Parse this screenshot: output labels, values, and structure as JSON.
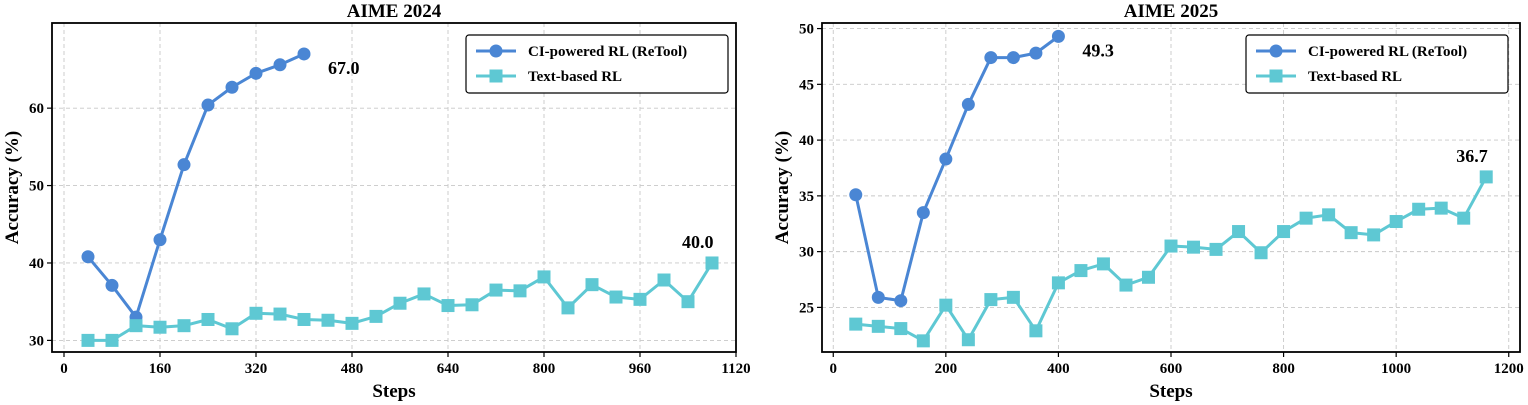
{
  "chart_data": [
    {
      "type": "line",
      "title": "AIME 2024",
      "xlabel": "Steps",
      "ylabel": "Accuracy (%)",
      "xlim": [
        -20,
        1120
      ],
      "ylim": [
        28.5,
        71
      ],
      "xticks": [
        0,
        160,
        320,
        480,
        640,
        800,
        960,
        1120
      ],
      "yticks": [
        30,
        40,
        50,
        60
      ],
      "grid": true,
      "legend_position": "top-right",
      "series": [
        {
          "name": "CI-powered RL (ReTool)",
          "marker": "circle",
          "color": "#4a86d4",
          "x": [
            40,
            80,
            120,
            160,
            200,
            240,
            280,
            320,
            360,
            400
          ],
          "y": [
            40.8,
            37.1,
            33.0,
            43.0,
            52.7,
            60.4,
            62.7,
            64.5,
            65.6,
            67.0
          ],
          "end_label": "67.0"
        },
        {
          "name": "Text-based RL",
          "marker": "square",
          "color": "#5ec8d3",
          "x": [
            40,
            80,
            120,
            160,
            200,
            240,
            280,
            320,
            360,
            400,
            440,
            480,
            520,
            560,
            600,
            640,
            680,
            720,
            760,
            800,
            840,
            880,
            920,
            960,
            1000,
            1040,
            1080
          ],
          "y": [
            30.0,
            30.0,
            31.9,
            31.7,
            31.9,
            32.7,
            31.5,
            33.5,
            33.4,
            32.7,
            32.6,
            32.2,
            33.1,
            34.8,
            36.0,
            34.5,
            34.6,
            36.5,
            36.4,
            38.2,
            34.2,
            37.2,
            35.6,
            35.3,
            37.8,
            35.0,
            40.0
          ],
          "end_label": "40.0"
        }
      ]
    },
    {
      "type": "line",
      "title": "AIME 2025",
      "xlabel": "Steps",
      "ylabel": "Accuracy (%)",
      "xlim": [
        -20,
        1220
      ],
      "ylim": [
        21,
        50.5
      ],
      "xticks": [
        0,
        200,
        400,
        600,
        800,
        1000,
        1200
      ],
      "yticks": [
        25,
        30,
        35,
        40,
        45,
        50
      ],
      "grid": true,
      "legend_position": "top-right",
      "series": [
        {
          "name": "CI-powered RL (ReTool)",
          "marker": "circle",
          "color": "#4a86d4",
          "x": [
            40,
            80,
            120,
            160,
            200,
            240,
            280,
            320,
            360,
            400
          ],
          "y": [
            35.1,
            25.9,
            25.6,
            33.5,
            38.3,
            43.2,
            47.4,
            47.4,
            47.8,
            49.3
          ],
          "end_label": "49.3"
        },
        {
          "name": "Text-based RL",
          "marker": "square",
          "color": "#5ec8d3",
          "x": [
            40,
            80,
            120,
            160,
            200,
            240,
            280,
            320,
            360,
            400,
            440,
            480,
            520,
            560,
            600,
            640,
            680,
            720,
            760,
            800,
            840,
            880,
            920,
            960,
            1000,
            1040,
            1080,
            1120,
            1160
          ],
          "y": [
            23.5,
            23.3,
            23.1,
            22.0,
            25.2,
            22.1,
            25.7,
            25.9,
            22.9,
            27.2,
            28.3,
            28.9,
            27.0,
            27.7,
            30.5,
            30.4,
            30.2,
            31.8,
            29.9,
            31.8,
            33.0,
            33.3,
            31.7,
            31.5,
            32.7,
            33.8,
            33.9,
            33.0,
            36.7
          ],
          "end_label": "36.7"
        }
      ]
    }
  ]
}
